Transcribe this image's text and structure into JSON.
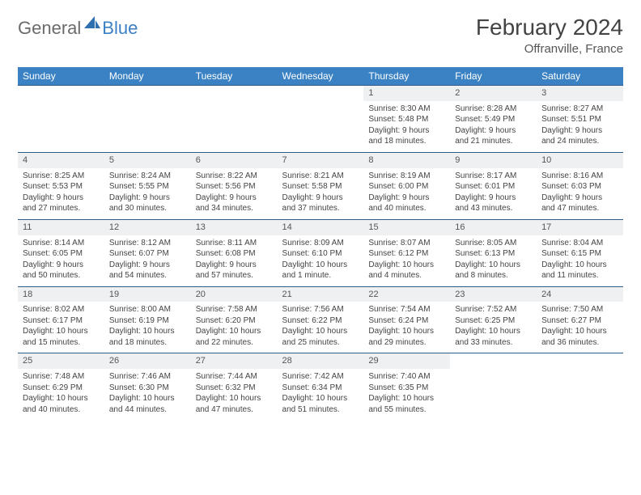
{
  "brand": {
    "general": "General",
    "blue": "Blue",
    "primary_color": "#3b82c4",
    "gray_color": "#6b6b6b"
  },
  "title": "February 2024",
  "location": "Offranville, France",
  "header_bg": "#3b82c4",
  "header_fg": "#ffffff",
  "daynum_bg": "#eef0f2",
  "border_color": "#2f5b88",
  "weekdays": [
    "Sunday",
    "Monday",
    "Tuesday",
    "Wednesday",
    "Thursday",
    "Friday",
    "Saturday"
  ],
  "weeks": [
    [
      null,
      null,
      null,
      null,
      {
        "n": "1",
        "sr": "Sunrise: 8:30 AM",
        "ss": "Sunset: 5:48 PM",
        "d1": "Daylight: 9 hours",
        "d2": "and 18 minutes."
      },
      {
        "n": "2",
        "sr": "Sunrise: 8:28 AM",
        "ss": "Sunset: 5:49 PM",
        "d1": "Daylight: 9 hours",
        "d2": "and 21 minutes."
      },
      {
        "n": "3",
        "sr": "Sunrise: 8:27 AM",
        "ss": "Sunset: 5:51 PM",
        "d1": "Daylight: 9 hours",
        "d2": "and 24 minutes."
      }
    ],
    [
      {
        "n": "4",
        "sr": "Sunrise: 8:25 AM",
        "ss": "Sunset: 5:53 PM",
        "d1": "Daylight: 9 hours",
        "d2": "and 27 minutes."
      },
      {
        "n": "5",
        "sr": "Sunrise: 8:24 AM",
        "ss": "Sunset: 5:55 PM",
        "d1": "Daylight: 9 hours",
        "d2": "and 30 minutes."
      },
      {
        "n": "6",
        "sr": "Sunrise: 8:22 AM",
        "ss": "Sunset: 5:56 PM",
        "d1": "Daylight: 9 hours",
        "d2": "and 34 minutes."
      },
      {
        "n": "7",
        "sr": "Sunrise: 8:21 AM",
        "ss": "Sunset: 5:58 PM",
        "d1": "Daylight: 9 hours",
        "d2": "and 37 minutes."
      },
      {
        "n": "8",
        "sr": "Sunrise: 8:19 AM",
        "ss": "Sunset: 6:00 PM",
        "d1": "Daylight: 9 hours",
        "d2": "and 40 minutes."
      },
      {
        "n": "9",
        "sr": "Sunrise: 8:17 AM",
        "ss": "Sunset: 6:01 PM",
        "d1": "Daylight: 9 hours",
        "d2": "and 43 minutes."
      },
      {
        "n": "10",
        "sr": "Sunrise: 8:16 AM",
        "ss": "Sunset: 6:03 PM",
        "d1": "Daylight: 9 hours",
        "d2": "and 47 minutes."
      }
    ],
    [
      {
        "n": "11",
        "sr": "Sunrise: 8:14 AM",
        "ss": "Sunset: 6:05 PM",
        "d1": "Daylight: 9 hours",
        "d2": "and 50 minutes."
      },
      {
        "n": "12",
        "sr": "Sunrise: 8:12 AM",
        "ss": "Sunset: 6:07 PM",
        "d1": "Daylight: 9 hours",
        "d2": "and 54 minutes."
      },
      {
        "n": "13",
        "sr": "Sunrise: 8:11 AM",
        "ss": "Sunset: 6:08 PM",
        "d1": "Daylight: 9 hours",
        "d2": "and 57 minutes."
      },
      {
        "n": "14",
        "sr": "Sunrise: 8:09 AM",
        "ss": "Sunset: 6:10 PM",
        "d1": "Daylight: 10 hours",
        "d2": "and 1 minute."
      },
      {
        "n": "15",
        "sr": "Sunrise: 8:07 AM",
        "ss": "Sunset: 6:12 PM",
        "d1": "Daylight: 10 hours",
        "d2": "and 4 minutes."
      },
      {
        "n": "16",
        "sr": "Sunrise: 8:05 AM",
        "ss": "Sunset: 6:13 PM",
        "d1": "Daylight: 10 hours",
        "d2": "and 8 minutes."
      },
      {
        "n": "17",
        "sr": "Sunrise: 8:04 AM",
        "ss": "Sunset: 6:15 PM",
        "d1": "Daylight: 10 hours",
        "d2": "and 11 minutes."
      }
    ],
    [
      {
        "n": "18",
        "sr": "Sunrise: 8:02 AM",
        "ss": "Sunset: 6:17 PM",
        "d1": "Daylight: 10 hours",
        "d2": "and 15 minutes."
      },
      {
        "n": "19",
        "sr": "Sunrise: 8:00 AM",
        "ss": "Sunset: 6:19 PM",
        "d1": "Daylight: 10 hours",
        "d2": "and 18 minutes."
      },
      {
        "n": "20",
        "sr": "Sunrise: 7:58 AM",
        "ss": "Sunset: 6:20 PM",
        "d1": "Daylight: 10 hours",
        "d2": "and 22 minutes."
      },
      {
        "n": "21",
        "sr": "Sunrise: 7:56 AM",
        "ss": "Sunset: 6:22 PM",
        "d1": "Daylight: 10 hours",
        "d2": "and 25 minutes."
      },
      {
        "n": "22",
        "sr": "Sunrise: 7:54 AM",
        "ss": "Sunset: 6:24 PM",
        "d1": "Daylight: 10 hours",
        "d2": "and 29 minutes."
      },
      {
        "n": "23",
        "sr": "Sunrise: 7:52 AM",
        "ss": "Sunset: 6:25 PM",
        "d1": "Daylight: 10 hours",
        "d2": "and 33 minutes."
      },
      {
        "n": "24",
        "sr": "Sunrise: 7:50 AM",
        "ss": "Sunset: 6:27 PM",
        "d1": "Daylight: 10 hours",
        "d2": "and 36 minutes."
      }
    ],
    [
      {
        "n": "25",
        "sr": "Sunrise: 7:48 AM",
        "ss": "Sunset: 6:29 PM",
        "d1": "Daylight: 10 hours",
        "d2": "and 40 minutes."
      },
      {
        "n": "26",
        "sr": "Sunrise: 7:46 AM",
        "ss": "Sunset: 6:30 PM",
        "d1": "Daylight: 10 hours",
        "d2": "and 44 minutes."
      },
      {
        "n": "27",
        "sr": "Sunrise: 7:44 AM",
        "ss": "Sunset: 6:32 PM",
        "d1": "Daylight: 10 hours",
        "d2": "and 47 minutes."
      },
      {
        "n": "28",
        "sr": "Sunrise: 7:42 AM",
        "ss": "Sunset: 6:34 PM",
        "d1": "Daylight: 10 hours",
        "d2": "and 51 minutes."
      },
      {
        "n": "29",
        "sr": "Sunrise: 7:40 AM",
        "ss": "Sunset: 6:35 PM",
        "d1": "Daylight: 10 hours",
        "d2": "and 55 minutes."
      },
      null,
      null
    ]
  ]
}
